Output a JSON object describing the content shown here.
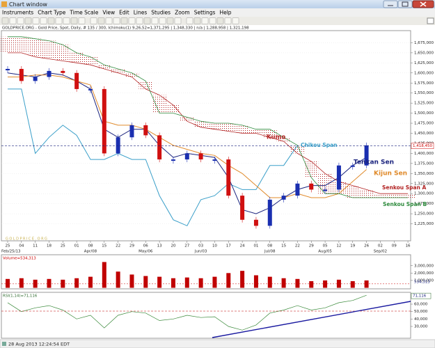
{
  "window": {
    "title": "Chart window"
  },
  "menu": [
    "Instruments",
    "Chart Type",
    "Time Scale",
    "View",
    "Edit",
    "Lines",
    "Studies",
    "Zoom",
    "Settings",
    "Help"
  ],
  "status": "28 Aug 2013 12:24:54 EDT",
  "chart_data": [
    {
      "type": "ichimoku",
      "subtitle": "GOLDPRICE.ORG - Gold Price, Spot, Daily, # 135 / 300, Ichimoku(1) 9,26,52=1,371,295 | 1,348,330 | n/a | 1,288,958 | 1,321,198",
      "watermark": "GOLDPRICE.ORG",
      "cloud_label": "Kumo",
      "cloud_color": "#b22222",
      "up_color": "#1a2fb0",
      "down_color": "#d01010",
      "grid": true,
      "categories": [
        "25",
        "04",
        "11",
        "18",
        "25",
        "01",
        "08",
        "15",
        "22",
        "29",
        "06",
        "13",
        "20",
        "27",
        "03",
        "10",
        "17",
        "24",
        "01",
        "08",
        "15",
        "22",
        "29",
        "05",
        "12",
        "19",
        "26",
        "02",
        "09",
        "16"
      ],
      "month_labels": [
        "Feb/25/13",
        null,
        null,
        null,
        null,
        null,
        "Apr/08",
        null,
        null,
        null,
        "May/06",
        null,
        null,
        null,
        "Jun/03",
        null,
        null,
        null,
        null,
        "Jul/08",
        null,
        null,
        null,
        "Aug/05",
        null,
        null,
        null,
        "Sep/02",
        null,
        null
      ],
      "values": [
        1610000,
        1580000,
        1590000,
        1605000,
        1600000,
        1560000,
        1560000,
        1400000,
        1440000,
        1470000,
        1445000,
        1385000,
        1385000,
        1400000,
        1385000,
        1385000,
        1295000,
        1235000,
        1220000,
        1285000,
        1295000,
        1325000,
        1310000,
        1310000,
        1370000,
        1370000,
        1420000,
        null,
        null,
        null
      ],
      "series": [
        {
          "name": "Chikou Span",
          "color": "#3a9fc9",
          "values": [
            1560000,
            1560000,
            1400000,
            1440000,
            1470000,
            1445000,
            1385000,
            1385000,
            1400000,
            1385000,
            1385000,
            1295000,
            1235000,
            1220000,
            1285000,
            1295000,
            1325000,
            1310000,
            1310000,
            1370000,
            1370000,
            1420000,
            null,
            null,
            null,
            null,
            null,
            null,
            null,
            null
          ]
        },
        {
          "name": "Tenkan Sen",
          "color": "#1a237e",
          "values": [
            1600000,
            1595000,
            1590000,
            1600000,
            1595000,
            1580000,
            1560000,
            1460000,
            1440000,
            1460000,
            1460000,
            1420000,
            1390000,
            1400000,
            1395000,
            1390000,
            1340000,
            1260000,
            1250000,
            1265000,
            1290000,
            1310000,
            1320000,
            1320000,
            1340000,
            1370000,
            1390000,
            null,
            null,
            null
          ]
        },
        {
          "name": "Kijun Sen",
          "color": "#e08a2a",
          "values": [
            1590000,
            1590000,
            1595000,
            1595000,
            1590000,
            1580000,
            1570000,
            1480000,
            1470000,
            1470000,
            1460000,
            1440000,
            1420000,
            1410000,
            1400000,
            1395000,
            1370000,
            1350000,
            1320000,
            1290000,
            1290000,
            1300000,
            1290000,
            1290000,
            1300000,
            1330000,
            1360000,
            null,
            null,
            null
          ]
        },
        {
          "name": "Senkou Span A",
          "color": "#b22222",
          "values": [
            1650000,
            1650000,
            1640000,
            1635000,
            1630000,
            1625000,
            1620000,
            1610000,
            1600000,
            1590000,
            1560000,
            1545000,
            1520000,
            1480000,
            1465000,
            1460000,
            1455000,
            1450000,
            1450000,
            1440000,
            1430000,
            1400000,
            1380000,
            1350000,
            1330000,
            1320000,
            1310000,
            1300000,
            1300000,
            1300000
          ]
        },
        {
          "name": "Senkou Span B",
          "color": "#2e8b3d",
          "values": [
            1690000,
            1690000,
            1685000,
            1680000,
            1670000,
            1650000,
            1640000,
            1620000,
            1610000,
            1600000,
            1580000,
            1500000,
            1500000,
            1490000,
            1480000,
            1475000,
            1475000,
            1470000,
            1460000,
            1460000,
            1440000,
            1420000,
            1340000,
            1300000,
            1300000,
            1290000,
            1290000,
            1290000,
            1290000,
            1290000
          ]
        }
      ],
      "last_price": {
        "value": 1418450,
        "label": "1,418,450"
      },
      "ylim": [
        1200000,
        1700000
      ],
      "yticks": [
        {
          "value": 1225000,
          "label": "1,225,000"
        },
        {
          "value": 1250000,
          "label": "1,250,000"
        },
        {
          "value": 1275000,
          "label": "1,275,000"
        },
        {
          "value": 1300000,
          "label": "1,300,000"
        },
        {
          "value": 1325000,
          "label": "1,325,000"
        },
        {
          "value": 1350000,
          "label": "1,350,000"
        },
        {
          "value": 1375000,
          "label": "1,375,000"
        },
        {
          "value": 1400000,
          "label": "1,400,000"
        },
        {
          "value": 1425000,
          "label": "1,425,000"
        },
        {
          "value": 1450000,
          "label": "1,450,000"
        },
        {
          "value": 1475000,
          "label": "1,475,000"
        },
        {
          "value": 1500000,
          "label": "1,500,000"
        },
        {
          "value": 1525000,
          "label": "1,525,000"
        },
        {
          "value": 1550000,
          "label": "1,550,000"
        },
        {
          "value": 1575000,
          "label": "1,575,000"
        },
        {
          "value": 1600000,
          "label": "1,600,000"
        },
        {
          "value": 1625000,
          "label": "1,625,000"
        },
        {
          "value": 1650000,
          "label": "1,650,000"
        },
        {
          "value": 1675000,
          "label": "1,675,000"
        }
      ]
    },
    {
      "type": "bar",
      "title": "Volume=534,313",
      "color": "#c00000",
      "values": [
        1200000,
        1300000,
        1100000,
        1200000,
        1100000,
        1300000,
        1500000,
        3500000,
        2200000,
        1800000,
        1600000,
        1500000,
        1300000,
        1400000,
        1300000,
        1500000,
        2000000,
        2300000,
        1700000,
        1500000,
        1300000,
        1200000,
        900000,
        1000000,
        1100000,
        900000,
        1000000,
        null,
        null,
        null
      ],
      "last_value": {
        "value": 534313,
        "label": "534,313"
      },
      "ylim": [
        0,
        4300000
      ],
      "yticks": [
        {
          "value": 1000000,
          "label": "1,000,000"
        },
        {
          "value": 2000000,
          "label": "2,000,000"
        },
        {
          "value": 3000000,
          "label": "3,000,000"
        }
      ]
    },
    {
      "type": "line",
      "title": "RSI(1,14)=71,116",
      "color": "#3a8a3a",
      "values": [
        62000,
        50000,
        55000,
        58000,
        52000,
        40000,
        45000,
        28000,
        45000,
        50000,
        48000,
        38000,
        40000,
        45000,
        42000,
        43000,
        30000,
        25000,
        32000,
        48000,
        52000,
        58000,
        52000,
        55000,
        62000,
        65000,
        72000,
        null,
        null,
        null
      ],
      "last_value": {
        "value": 71116,
        "label": "71,116"
      },
      "ylim": [
        15000,
        75000
      ],
      "yticks": [
        {
          "value": 30000,
          "label": "30,000"
        },
        {
          "value": 40000,
          "label": "40,000"
        },
        {
          "value": 50000,
          "label": "50,000"
        },
        {
          "value": 60000,
          "label": "60,000"
        }
      ]
    }
  ]
}
